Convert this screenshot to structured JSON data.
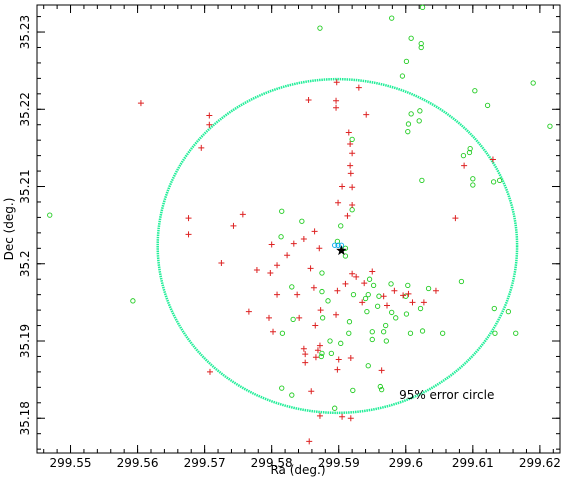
{
  "chart_data": {
    "type": "scatter",
    "xlabel": "Ra (deg.)",
    "ylabel": "Dec (deg.)",
    "xlim": [
      299.545,
      299.623
    ],
    "ylim": [
      35.1755,
      35.2335
    ],
    "x_ticks": [
      299.55,
      299.56,
      299.57,
      299.58,
      299.59,
      299.6,
      299.61,
      299.62
    ],
    "y_ticks": [
      35.18,
      35.19,
      35.2,
      35.21,
      35.22,
      35.23
    ],
    "x_tick_labels": [
      "299.55",
      "299.56",
      "299.57",
      "299.58",
      "299.59",
      "299.6",
      "299.61",
      "299.62"
    ],
    "y_tick_labels": [
      "35.18",
      "35.19",
      "35.2",
      "35.21",
      "35.22",
      "35.23"
    ],
    "grid": false,
    "series": [
      {
        "marker": "circle",
        "color": "#22cc22",
        "points": [
          [
            299.5469,
            35.2063
          ],
          [
            299.5593,
            35.1952
          ],
          [
            299.5872,
            35.2305
          ],
          [
            299.5979,
            35.2318
          ],
          [
            299.6025,
            35.2332
          ],
          [
            299.6008,
            35.2292
          ],
          [
            299.6023,
            35.2285
          ],
          [
            299.6023,
            35.228
          ],
          [
            299.6001,
            35.2262
          ],
          [
            299.5995,
            35.2243
          ],
          [
            299.619,
            35.2234
          ],
          [
            299.6103,
            35.2224
          ],
          [
            299.6122,
            35.2205
          ],
          [
            299.6215,
            35.2178
          ],
          [
            299.6021,
            35.2198
          ],
          [
            299.6008,
            35.2194
          ],
          [
            299.6004,
            35.2181
          ],
          [
            299.6003,
            35.2171
          ],
          [
            299.592,
            35.2161
          ],
          [
            299.602,
            35.2185
          ],
          [
            299.6095,
            35.2144
          ],
          [
            299.6096,
            35.2149
          ],
          [
            299.6086,
            35.214
          ],
          [
            299.61,
            35.211
          ],
          [
            299.61,
            35.2102
          ],
          [
            299.6131,
            35.2106
          ],
          [
            299.614,
            35.2108
          ],
          [
            299.6024,
            35.2108
          ],
          [
            299.5815,
            35.2068
          ],
          [
            299.592,
            35.207
          ],
          [
            299.5845,
            35.2055
          ],
          [
            299.5903,
            35.2049
          ],
          [
            299.5898,
            35.2029
          ],
          [
            299.591,
            35.202
          ],
          [
            299.591,
            35.201
          ],
          [
            299.5814,
            35.2035
          ],
          [
            299.5946,
            35.198
          ],
          [
            299.5952,
            35.1972
          ],
          [
            299.5944,
            35.196
          ],
          [
            299.5978,
            35.1974
          ],
          [
            299.6003,
            35.1972
          ],
          [
            299.6,
            35.1958
          ],
          [
            299.6001,
            35.1935
          ],
          [
            299.6022,
            35.1942
          ],
          [
            299.6034,
            35.1968
          ],
          [
            299.596,
            35.1958
          ],
          [
            299.5958,
            35.1945
          ],
          [
            299.594,
            35.1955
          ],
          [
            299.5922,
            35.196
          ],
          [
            299.5916,
            35.1925
          ],
          [
            299.5884,
            35.1952
          ],
          [
            299.5887,
            35.19
          ],
          [
            299.5876,
            35.193
          ],
          [
            299.5915,
            35.191
          ],
          [
            299.5903,
            35.1897
          ],
          [
            299.595,
            35.1902
          ],
          [
            299.595,
            35.1912
          ],
          [
            299.5942,
            35.1938
          ],
          [
            299.597,
            35.192
          ],
          [
            299.5967,
            35.1912
          ],
          [
            299.5971,
            35.19
          ],
          [
            299.5979,
            35.1937
          ],
          [
            299.5985,
            35.193
          ],
          [
            299.6007,
            35.191
          ],
          [
            299.6025,
            35.1913
          ],
          [
            299.5832,
            35.1928
          ],
          [
            299.583,
            35.197
          ],
          [
            299.5816,
            35.191
          ],
          [
            299.5875,
            35.1988
          ],
          [
            299.5875,
            35.1964
          ],
          [
            299.5875,
            35.1884
          ],
          [
            299.5889,
            35.1884
          ],
          [
            299.5815,
            35.1839
          ],
          [
            299.583,
            35.183
          ],
          [
            299.5874,
            35.188
          ],
          [
            299.5964,
            35.1837
          ],
          [
            299.5962,
            35.1841
          ],
          [
            299.5944,
            35.1868
          ],
          [
            299.5921,
            35.1836
          ],
          [
            299.5894,
            35.1813
          ],
          [
            299.6083,
            35.1977
          ],
          [
            299.6133,
            35.191
          ],
          [
            299.6164,
            35.191
          ],
          [
            299.6055,
            35.191
          ],
          [
            299.6132,
            35.1942
          ],
          [
            299.6153,
            35.1938
          ]
        ]
      },
      {
        "marker": "plus",
        "color": "#dd2222",
        "points": [
          [
            299.5605,
            35.2208
          ],
          [
            299.5707,
            35.2192
          ],
          [
            299.5707,
            35.218
          ],
          [
            299.5695,
            35.215
          ],
          [
            299.5855,
            35.2212
          ],
          [
            299.5897,
            35.2235
          ],
          [
            299.593,
            35.2228
          ],
          [
            299.5896,
            35.2211
          ],
          [
            299.5896,
            35.2202
          ],
          [
            299.5941,
            35.2193
          ],
          [
            299.5915,
            35.217
          ],
          [
            299.5917,
            35.2155
          ],
          [
            299.592,
            35.2143
          ],
          [
            299.5917,
            35.2127
          ],
          [
            299.5918,
            35.2117
          ],
          [
            299.5905,
            35.21
          ],
          [
            299.592,
            35.2099
          ],
          [
            299.5899,
            35.2079
          ],
          [
            299.592,
            35.2076
          ],
          [
            299.5913,
            35.2062
          ],
          [
            299.613,
            35.2135
          ],
          [
            299.6087,
            35.2127
          ],
          [
            299.6074,
            35.2059
          ],
          [
            299.5676,
            35.2059
          ],
          [
            299.5676,
            35.2038
          ],
          [
            299.5757,
            35.2064
          ],
          [
            299.5743,
            35.2049
          ],
          [
            299.58,
            35.2025
          ],
          [
            299.5833,
            35.2026
          ],
          [
            299.5848,
            35.2032
          ],
          [
            299.5864,
            35.2042
          ],
          [
            299.5871,
            35.202
          ],
          [
            299.5823,
            35.2011
          ],
          [
            299.5725,
            35.2001
          ],
          [
            299.5798,
            35.1988
          ],
          [
            299.5778,
            35.1992
          ],
          [
            299.5808,
            35.1998
          ],
          [
            299.5858,
            35.1994
          ],
          [
            299.5863,
            35.1969
          ],
          [
            299.5838,
            35.196
          ],
          [
            299.5808,
            35.196
          ],
          [
            299.5796,
            35.193
          ],
          [
            299.5766,
            35.1938
          ],
          [
            299.5802,
            35.1912
          ],
          [
            299.5841,
            35.193
          ],
          [
            299.5865,
            35.192
          ],
          [
            299.5848,
            35.189
          ],
          [
            299.585,
            35.1883
          ],
          [
            299.585,
            35.1872
          ],
          [
            299.5869,
            35.1888
          ],
          [
            299.5866,
            35.1879
          ],
          [
            299.5872,
            35.1894
          ],
          [
            299.5873,
            35.194
          ],
          [
            299.59,
            35.1876
          ],
          [
            299.5898,
            35.1863
          ],
          [
            299.5918,
            35.1878
          ],
          [
            299.5896,
            35.1934
          ],
          [
            299.5898,
            35.1965
          ],
          [
            299.591,
            35.1974
          ],
          [
            299.592,
            35.1987
          ],
          [
            299.5926,
            35.1983
          ],
          [
            299.5938,
            35.1975
          ],
          [
            299.5935,
            35.195
          ],
          [
            299.595,
            35.199
          ],
          [
            299.5967,
            35.1958
          ],
          [
            299.5972,
            35.1946
          ],
          [
            299.5983,
            35.1965
          ],
          [
            299.601,
            35.195
          ],
          [
            299.6004,
            35.1961
          ],
          [
            299.6027,
            35.195
          ],
          [
            299.6045,
            35.1965
          ],
          [
            299.5996,
            35.1959
          ],
          [
            299.5964,
            35.1862
          ],
          [
            299.5859,
            35.1835
          ],
          [
            299.5872,
            35.1803
          ],
          [
            299.5905,
            35.1802
          ],
          [
            299.5918,
            35.18
          ],
          [
            299.5856,
            35.177
          ],
          [
            299.5708,
            35.186
          ]
        ]
      },
      {
        "marker": "circle",
        "color": "#00aaee",
        "points": [
          [
            299.5894,
            35.2024
          ],
          [
            299.5899,
            35.2024
          ],
          [
            299.5904,
            35.2024
          ]
        ]
      },
      {
        "marker": "star",
        "color": "#000000",
        "points": [
          [
            299.5904,
            35.2017
          ]
        ]
      }
    ],
    "error_circle": {
      "center": [
        299.5898,
        35.2023
      ],
      "ra_radius": 0.0268,
      "dec_radius": 0.0216,
      "color": "#22ee99",
      "label": "95% error circle",
      "label_position": [
        299.599,
        35.1825
      ]
    }
  }
}
